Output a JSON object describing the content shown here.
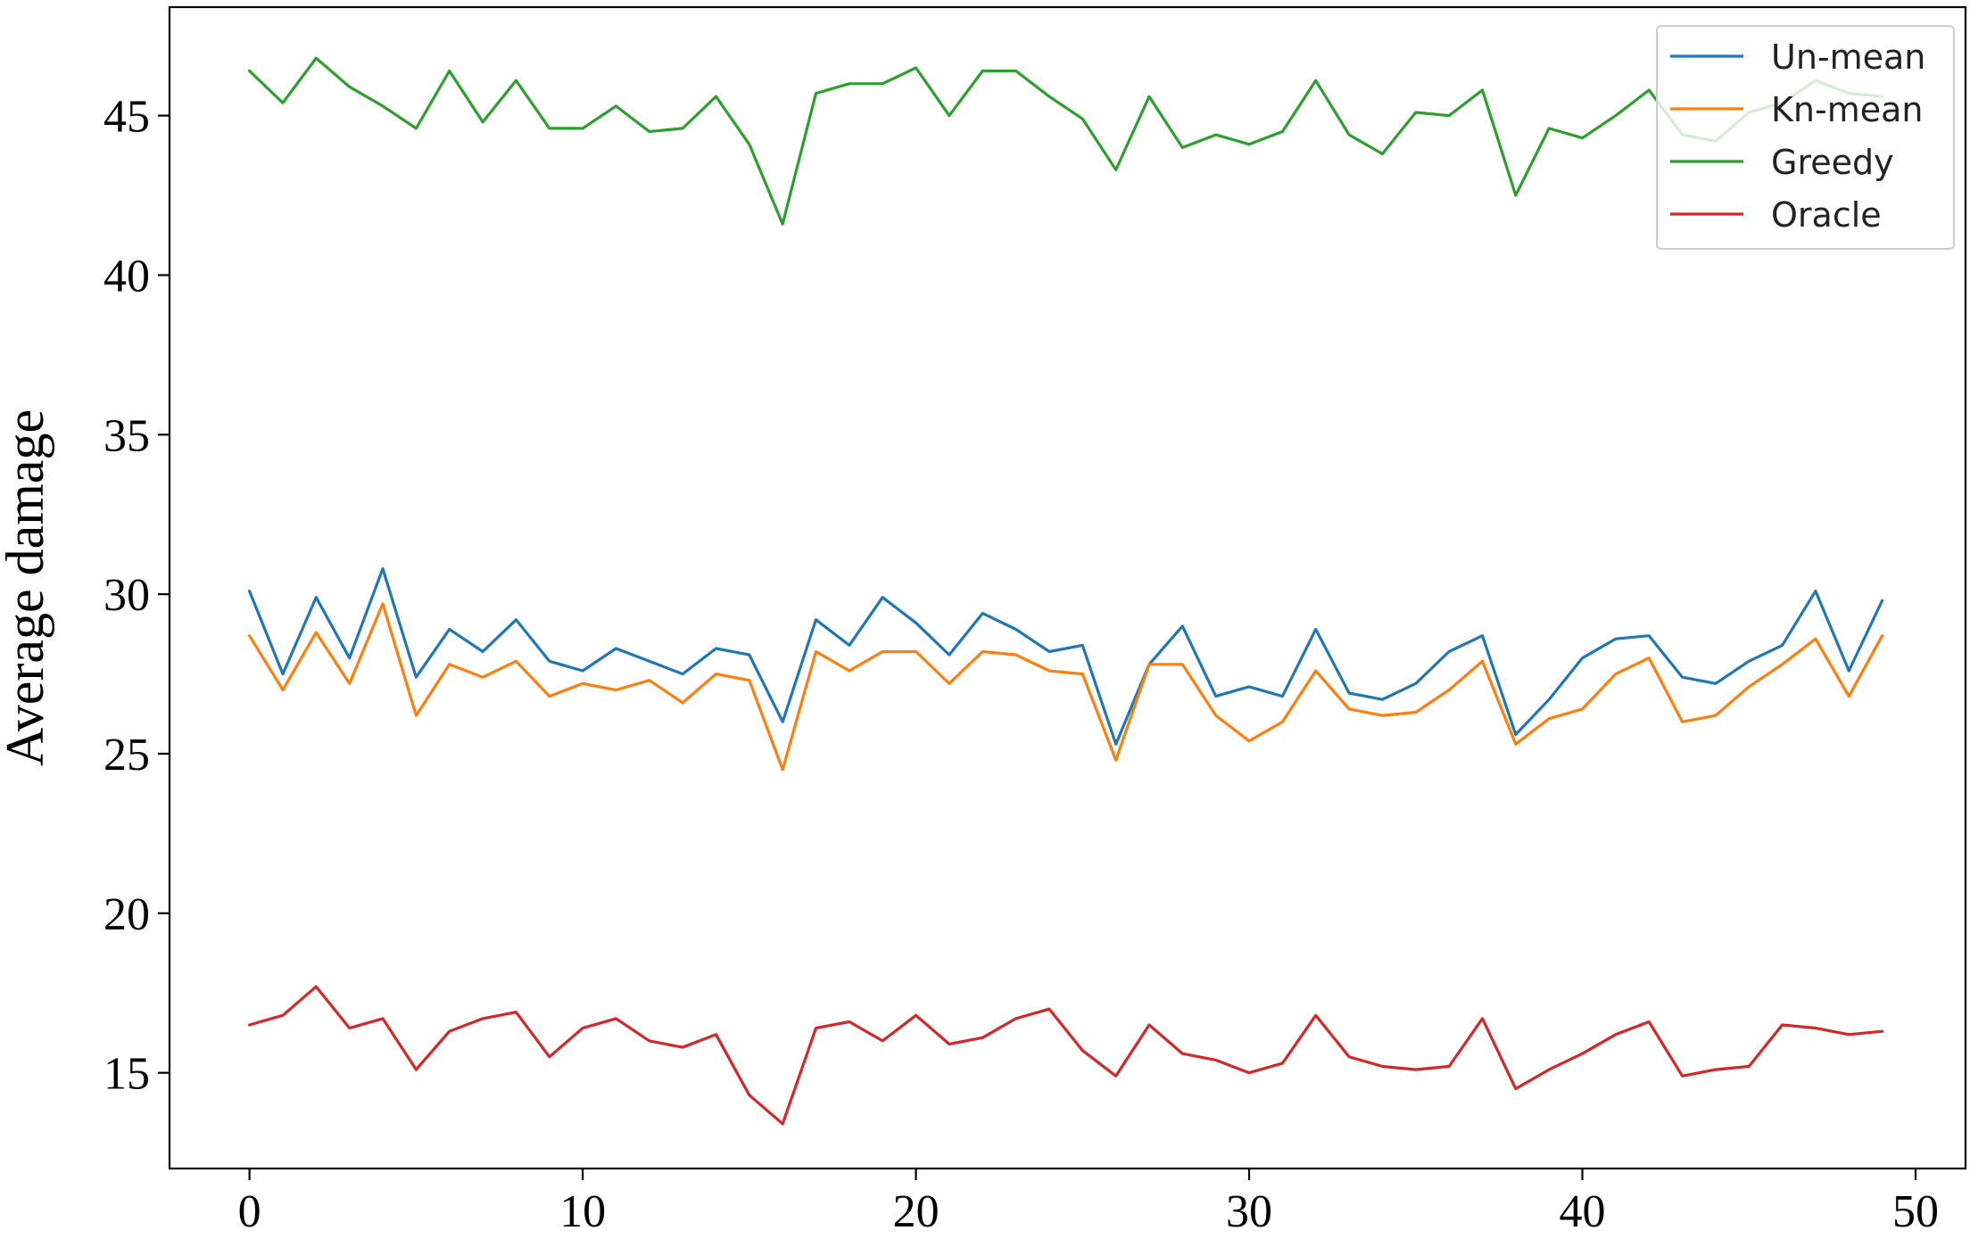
{
  "chart_data": {
    "type": "line",
    "title": "",
    "xlabel": "",
    "ylabel": "Average damage",
    "xlim": [
      -2.4,
      51.5
    ],
    "ylim": [
      12.0,
      48.4
    ],
    "xticks": [
      0,
      10,
      20,
      30,
      40,
      50
    ],
    "yticks": [
      15,
      20,
      25,
      30,
      35,
      40,
      45
    ],
    "grid": false,
    "legend_position": "top-right",
    "x": [
      0,
      1,
      2,
      3,
      4,
      5,
      6,
      7,
      8,
      9,
      10,
      11,
      12,
      13,
      14,
      15,
      16,
      17,
      18,
      19,
      20,
      21,
      22,
      23,
      24,
      25,
      26,
      27,
      28,
      29,
      30,
      31,
      32,
      33,
      34,
      35,
      36,
      37,
      38,
      39,
      40,
      41,
      42,
      43,
      44,
      45,
      46,
      47,
      48,
      49
    ],
    "series": [
      {
        "name": "Un-mean",
        "color": "#1f77b4",
        "values": [
          30.1,
          27.5,
          29.9,
          28.0,
          30.8,
          27.4,
          28.9,
          28.2,
          29.2,
          27.9,
          27.6,
          28.3,
          27.9,
          27.5,
          28.3,
          28.1,
          26.0,
          29.2,
          28.4,
          29.9,
          29.1,
          28.1,
          29.4,
          28.9,
          28.2,
          28.4,
          25.3,
          27.8,
          29.0,
          26.8,
          27.1,
          26.8,
          28.9,
          26.9,
          26.7,
          27.2,
          28.2,
          28.7,
          25.6,
          26.7,
          28.0,
          28.6,
          28.7,
          27.4,
          27.2,
          27.9,
          28.4,
          30.1,
          27.6,
          29.8
        ]
      },
      {
        "name": "Kn-mean",
        "color": "#ff7f0e",
        "values": [
          28.7,
          27.0,
          28.8,
          27.2,
          29.7,
          26.2,
          27.8,
          27.4,
          27.9,
          26.8,
          27.2,
          27.0,
          27.3,
          26.6,
          27.5,
          27.3,
          24.5,
          28.2,
          27.6,
          28.2,
          28.2,
          27.2,
          28.2,
          28.1,
          27.6,
          27.5,
          24.8,
          27.8,
          27.8,
          26.2,
          25.4,
          26.0,
          27.6,
          26.4,
          26.2,
          26.3,
          27.0,
          27.9,
          25.3,
          26.1,
          26.4,
          27.5,
          28.0,
          26.0,
          26.2,
          27.1,
          27.8,
          28.6,
          26.8,
          28.7
        ]
      },
      {
        "name": "Greedy",
        "color": "#2ca02c",
        "values": [
          46.4,
          45.4,
          46.8,
          45.9,
          45.3,
          44.6,
          46.4,
          44.8,
          46.1,
          44.6,
          44.6,
          45.3,
          44.5,
          44.6,
          45.6,
          44.1,
          41.6,
          45.7,
          46.0,
          46.0,
          46.5,
          45.0,
          46.4,
          46.4,
          45.6,
          44.9,
          43.3,
          45.6,
          44.0,
          44.4,
          44.1,
          44.5,
          46.1,
          44.4,
          43.8,
          45.1,
          45.0,
          45.8,
          42.5,
          44.6,
          44.3,
          45.0,
          45.8,
          44.4,
          44.2,
          45.1,
          45.4,
          46.1,
          45.7,
          45.6
        ]
      },
      {
        "name": "Oracle",
        "color": "#d62728",
        "values": [
          16.5,
          16.8,
          17.7,
          16.4,
          16.7,
          15.1,
          16.3,
          16.7,
          16.9,
          15.5,
          16.4,
          16.7,
          16.0,
          15.8,
          16.2,
          14.3,
          13.4,
          16.4,
          16.6,
          16.0,
          16.8,
          15.9,
          16.1,
          16.7,
          17.0,
          15.7,
          14.9,
          16.5,
          15.6,
          15.4,
          15.0,
          15.3,
          16.8,
          15.5,
          15.2,
          15.1,
          15.2,
          16.7,
          14.5,
          15.1,
          15.6,
          16.2,
          16.6,
          14.9,
          15.1,
          15.2,
          16.5,
          16.4,
          16.2,
          16.3
        ]
      }
    ]
  }
}
